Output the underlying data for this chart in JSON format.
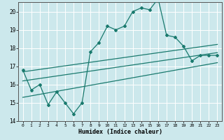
{
  "xlabel": "Humidex (Indice chaleur)",
  "background_color": "#cce8ec",
  "grid_color": "#b0d4d8",
  "line_color": "#1a7a6e",
  "xlim": [
    -0.5,
    23.5
  ],
  "ylim": [
    14,
    20.5
  ],
  "yticks": [
    14,
    15,
    16,
    17,
    18,
    19,
    20
  ],
  "xticks": [
    0,
    1,
    2,
    3,
    4,
    5,
    6,
    7,
    8,
    9,
    10,
    11,
    12,
    13,
    14,
    15,
    16,
    17,
    18,
    19,
    20,
    21,
    22,
    23
  ],
  "jagged_x": [
    0,
    1,
    2,
    3,
    4,
    5,
    6,
    7,
    8,
    9,
    10,
    11,
    12,
    13,
    14,
    15,
    16,
    17,
    18,
    19,
    20,
    21,
    22,
    23
  ],
  "jagged_y": [
    16.8,
    15.7,
    16.0,
    14.9,
    15.6,
    15.0,
    14.4,
    15.0,
    17.8,
    18.3,
    19.2,
    19.0,
    19.2,
    20.0,
    20.2,
    20.1,
    20.7,
    18.7,
    18.6,
    18.1,
    17.3,
    17.6,
    17.6,
    17.6
  ],
  "line1_x": [
    0,
    23
  ],
  "line1_y": [
    16.7,
    18.2
  ],
  "line2_x": [
    0,
    23
  ],
  "line2_y": [
    16.2,
    17.75
  ],
  "line3_x": [
    0,
    23
  ],
  "line3_y": [
    15.3,
    17.2
  ]
}
